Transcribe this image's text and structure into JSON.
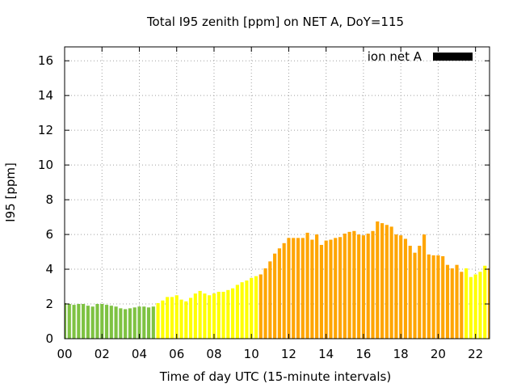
{
  "chart_data": {
    "type": "bar",
    "title": "Total I95 zenith [ppm] on NET A, DoY=115",
    "xlabel": "Time of day UTC (15-minute intervals)",
    "ylabel": "I95 [ppm]",
    "xlim": [
      0,
      22.75
    ],
    "ylim": [
      0,
      16.8
    ],
    "xticks": [
      {
        "value": 0,
        "label": "00"
      },
      {
        "value": 2,
        "label": "02"
      },
      {
        "value": 4,
        "label": "04"
      },
      {
        "value": 6,
        "label": "06"
      },
      {
        "value": 8,
        "label": "08"
      },
      {
        "value": 10,
        "label": "10"
      },
      {
        "value": 12,
        "label": "12"
      },
      {
        "value": 14,
        "label": "14"
      },
      {
        "value": 16,
        "label": "16"
      },
      {
        "value": 18,
        "label": "18"
      },
      {
        "value": 20,
        "label": "20"
      },
      {
        "value": 22,
        "label": "22"
      }
    ],
    "yticks": [
      {
        "value": 0,
        "label": "0"
      },
      {
        "value": 2,
        "label": "2"
      },
      {
        "value": 4,
        "label": "4"
      },
      {
        "value": 6,
        "label": "6"
      },
      {
        "value": 8,
        "label": "8"
      },
      {
        "value": 10,
        "label": "10"
      },
      {
        "value": 12,
        "label": "12"
      },
      {
        "value": 14,
        "label": "14"
      },
      {
        "value": 16,
        "label": "16"
      }
    ],
    "grid": true,
    "legend": {
      "position": "top-right",
      "label": "ion net A",
      "color": "#000000"
    },
    "colors": {
      "green": "#7ec242",
      "yellow": "#ffff00",
      "orange": "#ffa500"
    },
    "bar_width_hours": 0.18,
    "series": [
      {
        "color": "#7ec242",
        "x": [
          0,
          0.25,
          0.5,
          0.75,
          1.0,
          1.25,
          1.5,
          1.75,
          2.0,
          2.25,
          2.5,
          2.75,
          3.0,
          3.25,
          3.5,
          3.75,
          4.0,
          4.25,
          4.5,
          4.75
        ],
        "values": [
          2.05,
          2.0,
          1.95,
          2.0,
          2.0,
          1.9,
          1.85,
          2.0,
          2.0,
          1.95,
          1.9,
          1.85,
          1.75,
          1.7,
          1.75,
          1.8,
          1.85,
          1.85,
          1.8,
          1.85
        ]
      },
      {
        "color": "#ffff00",
        "x": [
          5.0,
          5.25,
          5.5,
          5.75,
          6.0,
          6.25,
          6.5,
          6.75,
          7.0,
          7.25,
          7.5,
          7.75,
          8.0,
          8.25,
          8.5,
          8.75,
          9.0,
          9.25,
          9.5,
          9.75,
          10.0,
          10.25,
          21.5,
          21.75,
          22.0,
          22.25,
          22.5
        ],
        "values": [
          2.05,
          2.2,
          2.4,
          2.4,
          2.5,
          2.25,
          2.15,
          2.35,
          2.6,
          2.75,
          2.6,
          2.5,
          2.6,
          2.7,
          2.7,
          2.8,
          2.9,
          3.1,
          3.25,
          3.35,
          3.5,
          3.6,
          4.05,
          3.55,
          3.7,
          3.85,
          4.2
        ]
      },
      {
        "color": "#ffa500",
        "x": [
          10.5,
          10.75,
          11.0,
          11.25,
          11.5,
          11.75,
          12.0,
          12.25,
          12.5,
          12.75,
          13.0,
          13.25,
          13.5,
          13.75,
          14.0,
          14.25,
          14.5,
          14.75,
          15.0,
          15.25,
          15.5,
          15.75,
          16.0,
          16.25,
          16.5,
          16.75,
          17.0,
          17.25,
          17.5,
          17.75,
          18.0,
          18.25,
          18.5,
          18.75,
          19.0,
          19.25,
          19.5,
          19.75,
          20.0,
          20.25,
          20.5,
          20.75,
          21.0,
          21.25,
          22.75
        ],
        "values": [
          3.7,
          4.05,
          4.45,
          4.9,
          5.2,
          5.5,
          5.8,
          5.8,
          5.8,
          5.8,
          6.1,
          5.7,
          6.0,
          5.4,
          5.65,
          5.7,
          5.8,
          5.85,
          6.05,
          6.15,
          6.2,
          6.0,
          5.95,
          6.05,
          6.2,
          6.75,
          6.65,
          6.55,
          6.45,
          6.0,
          5.95,
          5.75,
          5.35,
          4.95,
          5.35,
          6.0,
          4.85,
          4.8,
          4.8,
          4.75,
          4.25,
          4.05,
          4.25,
          3.85,
          4.05
        ]
      }
    ]
  }
}
